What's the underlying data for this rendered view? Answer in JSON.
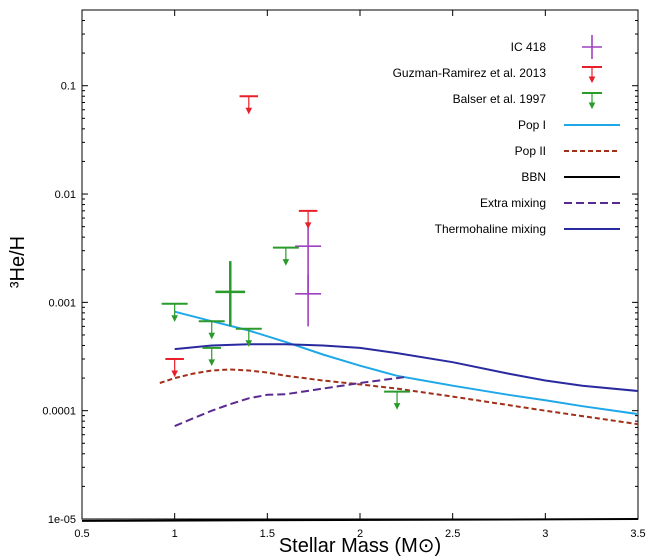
{
  "chart_data": {
    "type": "scatter",
    "title": "",
    "xlabel": "Stellar Mass (M⊙)",
    "ylabel": "³He/H",
    "xlim": [
      0.5,
      3.5
    ],
    "ylim": [
      1e-05,
      0.5
    ],
    "yscale": "log",
    "xticks": [
      {
        "value": 0.5,
        "label": "0.5"
      },
      {
        "value": 1,
        "label": "1"
      },
      {
        "value": 1.5,
        "label": "1.5"
      },
      {
        "value": 2,
        "label": "2"
      },
      {
        "value": 2.5,
        "label": "2.5"
      },
      {
        "value": 3,
        "label": "3"
      },
      {
        "value": 3.5,
        "label": "3.5"
      }
    ],
    "yticks": [
      {
        "value": 1e-05,
        "label": "1e-05"
      },
      {
        "value": 0.0001,
        "label": "0.0001"
      },
      {
        "value": 0.001,
        "label": "0.001"
      },
      {
        "value": 0.01,
        "label": "0.01"
      },
      {
        "value": 0.1,
        "label": "0.1"
      }
    ],
    "grid": false,
    "legend_position": "top-right",
    "series": [
      {
        "name": "IC 418",
        "kind": "errorbar",
        "color": "#a040c0",
        "points": [
          {
            "x": 1.72,
            "y": 0.0033,
            "xerr": 0.07,
            "ylow": 0.0012,
            "yhigh": 0.0055
          },
          {
            "x": 1.72,
            "y": 0.0012,
            "xerr": 0.07,
            "ylow": 0.0006,
            "yhigh": 0.0018
          }
        ]
      },
      {
        "name": "Guzman-Ramirez et al. 2013",
        "kind": "upper-limit",
        "color": "#e8202a",
        "points": [
          {
            "x": 1.0,
            "y": 0.0003,
            "xerr": 0.05
          },
          {
            "x": 1.4,
            "y": 0.08,
            "xerr": 0.05
          },
          {
            "x": 1.72,
            "y": 0.007,
            "xerr": 0.05
          }
        ]
      },
      {
        "name": "Balser et al. 1997",
        "kind": "upper-limit",
        "color": "#2a9a2a",
        "points": [
          {
            "x": 1.0,
            "y": 0.00097,
            "xerr": 0.07
          },
          {
            "x": 1.2,
            "y": 0.00067,
            "xerr": 0.07
          },
          {
            "x": 1.2,
            "y": 0.00038,
            "xerr": 0.05
          },
          {
            "x": 1.4,
            "y": 0.00057,
            "xerr": 0.07
          },
          {
            "x": 1.6,
            "y": 0.0032,
            "xerr": 0.07
          },
          {
            "x": 2.2,
            "y": 0.00015,
            "xerr": 0.07
          }
        ]
      },
      {
        "name": "Balser et al. 1997",
        "kind": "errorbar",
        "legend": false,
        "color": "#2a9a2a",
        "points": [
          {
            "x": 1.3,
            "y": 0.00125,
            "xerr": 0.08,
            "ylow": 0.0006,
            "yhigh": 0.0024
          }
        ]
      },
      {
        "name": "Pop I",
        "kind": "line",
        "color": "#1ea8e8",
        "dash": "",
        "x": [
          1.0,
          1.2,
          1.4,
          1.6,
          1.8,
          2.0,
          2.2,
          2.5,
          2.8,
          3.0,
          3.2,
          3.5
        ],
        "y": [
          0.00082,
          0.00067,
          0.00055,
          0.00043,
          0.00033,
          0.00026,
          0.00021,
          0.00017,
          0.00014,
          0.000125,
          0.00011,
          9.3e-05
        ]
      },
      {
        "name": "Pop II",
        "kind": "line",
        "color": "#a03018",
        "dash": "5,3",
        "x": [
          0.92,
          1.0,
          1.1,
          1.2,
          1.3,
          1.4,
          1.5,
          1.6,
          1.8,
          2.0,
          2.2,
          2.5,
          3.0,
          3.5
        ],
        "y": [
          0.00018,
          0.0002,
          0.00022,
          0.000235,
          0.00024,
          0.000235,
          0.000225,
          0.00021,
          0.00019,
          0.000175,
          0.00016,
          0.000135,
          0.0001,
          7.5e-05
        ]
      },
      {
        "name": "BBN",
        "kind": "line",
        "color": "#000000",
        "dash": "",
        "x": [
          0.5,
          3.5
        ],
        "y": [
          9.6e-06,
          1e-05
        ]
      },
      {
        "name": "Extra mixing",
        "kind": "line",
        "color": "#5a2a90",
        "dash": "8,4",
        "x": [
          1.0,
          1.1,
          1.2,
          1.3,
          1.4,
          1.5,
          1.6,
          1.8,
          2.0,
          2.2,
          2.25
        ],
        "y": [
          7.2e-05,
          8.5e-05,
          0.0001,
          0.000115,
          0.00013,
          0.00014,
          0.000142,
          0.00016,
          0.00018,
          0.0002,
          0.000205
        ]
      },
      {
        "name": "Thermohaline mixing",
        "kind": "line",
        "color": "#2a2aa0",
        "dash": "",
        "x": [
          1.0,
          1.2,
          1.4,
          1.6,
          1.8,
          2.0,
          2.2,
          2.5,
          2.8,
          3.0,
          3.2,
          3.5
        ],
        "y": [
          0.00037,
          0.0004,
          0.00041,
          0.00041,
          0.0004,
          0.00038,
          0.00034,
          0.00028,
          0.00022,
          0.00019,
          0.00017,
          0.000152
        ]
      }
    ]
  }
}
